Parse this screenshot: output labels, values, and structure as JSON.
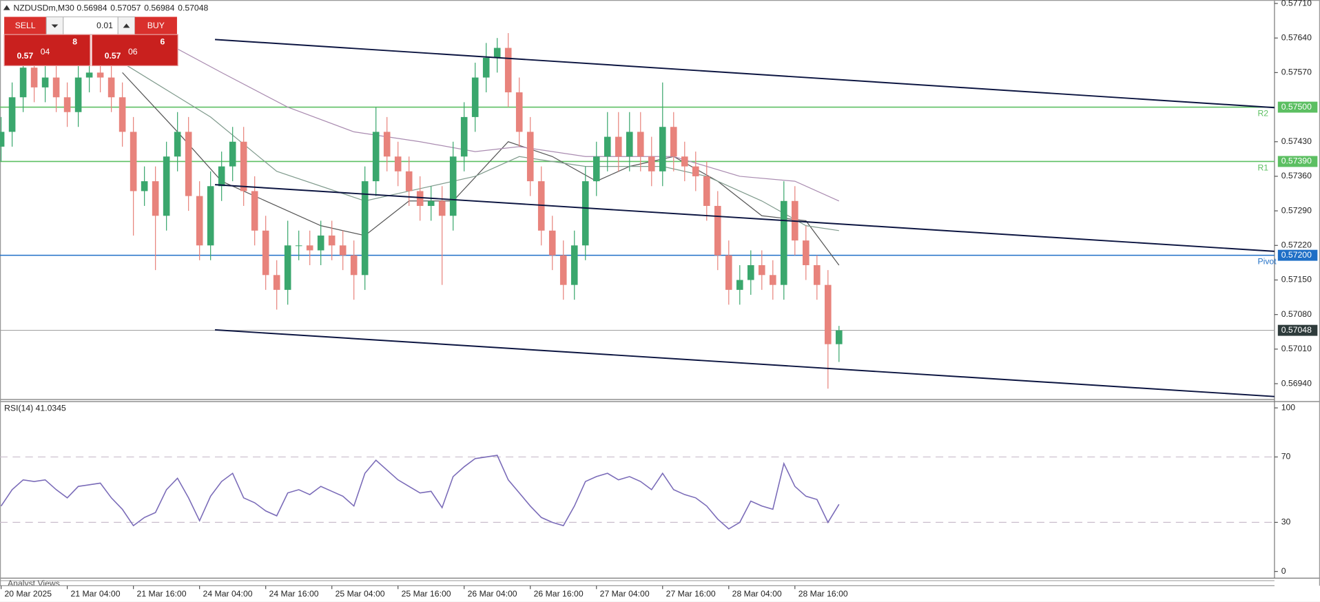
{
  "header": {
    "symbol": "NZDUSDm,M30",
    "ohlc": [
      "0.56984",
      "0.57057",
      "0.56984",
      "0.57048"
    ]
  },
  "trade_panel": {
    "sell": "SELL",
    "buy": "BUY",
    "lot": "0.01",
    "bid": {
      "big": "0.57",
      "pips": "04",
      "point": "8"
    },
    "ask": {
      "big": "0.57",
      "pips": "06",
      "point": "6"
    }
  },
  "footer_tab": "Analyst Views",
  "chart_data": [
    {
      "type": "candlestick",
      "xlim": [
        -0.1,
        115.5
      ],
      "ylim": [
        0.56908,
        0.57717
      ],
      "yticks": [
        {
          "value": 0.5771,
          "label": "0.57710"
        },
        {
          "value": 0.5764,
          "label": "0.57640"
        },
        {
          "value": 0.5757,
          "label": "0.57570"
        },
        {
          "value": 0.5743,
          "label": "0.57430"
        },
        {
          "value": 0.5736,
          "label": "0.57360"
        },
        {
          "value": 0.5729,
          "label": "0.57290"
        },
        {
          "value": 0.5722,
          "label": "0.57220"
        },
        {
          "value": 0.5715,
          "label": "0.57150"
        },
        {
          "value": 0.5708,
          "label": "0.57080"
        },
        {
          "value": 0.5701,
          "label": "0.57010"
        },
        {
          "value": 0.5694,
          "label": "0.56940"
        }
      ],
      "up_color": "#3aa76d",
      "down_color": "#e8837c",
      "open": [
        0.5742,
        0.5745,
        0.5752,
        0.5758,
        0.5754,
        0.5756,
        0.5752,
        0.5749,
        0.5756,
        0.5757,
        0.5756,
        0.5752,
        0.5745,
        0.5733,
        0.5735,
        0.5728,
        0.574,
        0.5745,
        0.5732,
        0.5722,
        0.5734,
        0.5738,
        0.5743,
        0.5733,
        0.5725,
        0.5716,
        0.5713,
        0.5722,
        0.5722,
        0.5721,
        0.5724,
        0.5722,
        0.572,
        0.5716,
        0.5735,
        0.5745,
        0.574,
        0.5737,
        0.5733,
        0.573,
        0.5731,
        0.5728,
        0.574,
        0.5748,
        0.5756,
        0.576,
        0.5762,
        0.5753,
        0.5745,
        0.5735,
        0.5725,
        0.572,
        0.5714,
        0.5722,
        0.5735,
        0.574,
        0.5744,
        0.574,
        0.5745,
        0.574,
        0.5737,
        0.5746,
        0.574,
        0.5738,
        0.5736,
        0.573,
        0.572,
        0.5713,
        0.5715,
        0.5718,
        0.5716,
        0.5714,
        0.5731,
        0.5723,
        0.5718,
        0.5714,
        0.5702
      ],
      "high": [
        0.5748,
        0.5755,
        0.5761,
        0.5761,
        0.5759,
        0.5759,
        0.5755,
        0.5759,
        0.576,
        0.576,
        0.5759,
        0.5755,
        0.5748,
        0.5738,
        0.5738,
        0.5743,
        0.5749,
        0.5748,
        0.5735,
        0.5737,
        0.5741,
        0.5746,
        0.5746,
        0.5736,
        0.5728,
        0.5719,
        0.5727,
        0.5725,
        0.5725,
        0.5727,
        0.5727,
        0.5725,
        0.5723,
        0.5738,
        0.575,
        0.5748,
        0.5743,
        0.574,
        0.5736,
        0.5734,
        0.5734,
        0.5743,
        0.5751,
        0.5759,
        0.5763,
        0.5764,
        0.5765,
        0.5756,
        0.5748,
        0.5738,
        0.5728,
        0.5723,
        0.5725,
        0.5738,
        0.5743,
        0.5749,
        0.5749,
        0.5749,
        0.5749,
        0.5744,
        0.5755,
        0.5749,
        0.5743,
        0.5741,
        0.5739,
        0.5733,
        0.5723,
        0.5718,
        0.5721,
        0.5721,
        0.5719,
        0.5735,
        0.5734,
        0.5726,
        0.572,
        0.5717,
        0.57057
      ],
      "low": [
        0.5739,
        0.5742,
        0.5749,
        0.5751,
        0.5751,
        0.5749,
        0.5746,
        0.5746,
        0.5753,
        0.5753,
        0.5749,
        0.5742,
        0.5724,
        0.573,
        0.5717,
        0.5725,
        0.5737,
        0.5729,
        0.5719,
        0.5719,
        0.5731,
        0.5735,
        0.573,
        0.5722,
        0.5713,
        0.5709,
        0.571,
        0.5719,
        0.5718,
        0.5718,
        0.5719,
        0.5717,
        0.5711,
        0.5713,
        0.5732,
        0.5737,
        0.5734,
        0.573,
        0.5727,
        0.5727,
        0.5714,
        0.5725,
        0.5737,
        0.5745,
        0.5753,
        0.5757,
        0.575,
        0.5742,
        0.5732,
        0.5722,
        0.5717,
        0.5711,
        0.5711,
        0.5719,
        0.5732,
        0.5737,
        0.5737,
        0.5737,
        0.5737,
        0.5734,
        0.5734,
        0.5737,
        0.5735,
        0.5733,
        0.5727,
        0.5717,
        0.571,
        0.571,
        0.5712,
        0.5713,
        0.5711,
        0.5711,
        0.572,
        0.5715,
        0.5711,
        0.5693,
        0.56984
      ],
      "close": [
        0.5745,
        0.5752,
        0.5758,
        0.5754,
        0.5756,
        0.5752,
        0.5749,
        0.5756,
        0.5757,
        0.5756,
        0.5752,
        0.5745,
        0.5733,
        0.5735,
        0.5728,
        0.574,
        0.5745,
        0.5732,
        0.5722,
        0.5734,
        0.5738,
        0.5743,
        0.5733,
        0.5725,
        0.5716,
        0.5713,
        0.5722,
        0.5722,
        0.5721,
        0.5724,
        0.5722,
        0.572,
        0.5716,
        0.5735,
        0.5745,
        0.574,
        0.5737,
        0.5733,
        0.573,
        0.5731,
        0.5728,
        0.574,
        0.5748,
        0.5756,
        0.576,
        0.5762,
        0.5753,
        0.5745,
        0.5735,
        0.5725,
        0.572,
        0.5714,
        0.5722,
        0.5735,
        0.574,
        0.5744,
        0.574,
        0.5745,
        0.574,
        0.5737,
        0.5746,
        0.574,
        0.5738,
        0.5736,
        0.573,
        0.572,
        0.5713,
        0.5715,
        0.5718,
        0.5716,
        0.5714,
        0.5731,
        0.5723,
        0.5718,
        0.5714,
        0.5702,
        0.57048
      ],
      "moving_averages": [
        {
          "color": "#555555",
          "x": [
            11,
            16,
            20,
            24,
            29,
            33,
            37,
            41,
            46,
            50,
            54,
            57,
            61,
            65,
            69,
            73,
            76
          ],
          "values": [
            0.5757,
            0.5745,
            0.5735,
            0.5731,
            0.5726,
            0.5724,
            0.5731,
            0.5731,
            0.5743,
            0.574,
            0.5735,
            0.5738,
            0.574,
            0.5735,
            0.5728,
            0.5727,
            0.5718
          ]
        },
        {
          "color": "#7f9a8c",
          "x": [
            11,
            19,
            25,
            33,
            37,
            43,
            47,
            53,
            60,
            64,
            69,
            73,
            76
          ],
          "values": [
            0.5759,
            0.5748,
            0.5737,
            0.5731,
            0.5733,
            0.5736,
            0.574,
            0.5738,
            0.5738,
            0.5736,
            0.5731,
            0.5726,
            0.5725
          ]
        },
        {
          "color": "#a98bb0",
          "x": [
            15,
            20,
            26,
            32,
            38,
            43,
            47,
            53,
            61,
            67,
            72,
            76
          ],
          "values": [
            0.5763,
            0.5757,
            0.575,
            0.5745,
            0.5743,
            0.5741,
            0.5742,
            0.574,
            0.574,
            0.5736,
            0.5735,
            0.5731
          ]
        }
      ],
      "trend_lines": [
        {
          "color": "#0b1440",
          "x": [
            19.4,
            115.5
          ],
          "values": [
            0.57637,
            0.57499
          ]
        },
        {
          "color": "#0b1440",
          "x": [
            19.4,
            115.5
          ],
          "values": [
            0.57343,
            0.57208
          ]
        },
        {
          "color": "#0b1440",
          "x": [
            19.4,
            115.5
          ],
          "values": [
            0.57049,
            0.56914
          ]
        }
      ],
      "hlines": [
        {
          "value": 0.575,
          "label": "0.57500",
          "tag": "R2",
          "color": "#5cbf62"
        },
        {
          "value": 0.5739,
          "label": "0.57390",
          "tag": "R1",
          "color": "#5cbf62"
        },
        {
          "value": 0.572,
          "label": "0.57200",
          "tag": "Pivot",
          "color": "#1f6fc6"
        }
      ],
      "current_price": {
        "value": 0.57048,
        "label": "0.57048",
        "color": "#2e3b3b"
      }
    },
    {
      "type": "line",
      "title": "RSI(14)",
      "color": "#7a6bb8",
      "xlim": [
        -0.1,
        115.5
      ],
      "ylim": [
        -4.1,
        103.6
      ],
      "yticks": [
        0,
        30,
        70,
        100
      ],
      "levels": [
        30,
        70
      ],
      "xticks": [
        {
          "value": 0,
          "label": "20 Mar 2025"
        },
        {
          "value": 6,
          "label": "21 Mar 04:00"
        },
        {
          "value": 12,
          "label": "21 Mar 16:00"
        },
        {
          "value": 18,
          "label": "24 Mar 04:00"
        },
        {
          "value": 24,
          "label": "24 Mar 16:00"
        },
        {
          "value": 30,
          "label": "25 Mar 04:00"
        },
        {
          "value": 36,
          "label": "25 Mar 16:00"
        },
        {
          "value": 42,
          "label": "26 Mar 04:00"
        },
        {
          "value": 48,
          "label": "26 Mar 16:00"
        },
        {
          "value": 54,
          "label": "27 Mar 04:00"
        },
        {
          "value": 60,
          "label": "27 Mar 16:00"
        },
        {
          "value": 66,
          "label": "28 Mar 04:00"
        },
        {
          "value": 72,
          "label": "28 Mar 16:00"
        }
      ],
      "values": [
        40,
        50,
        56,
        55,
        56,
        50,
        45,
        52,
        53,
        54,
        45,
        38,
        28,
        33,
        36,
        50,
        57,
        45,
        31,
        46,
        55,
        60,
        45,
        42,
        37,
        34,
        48,
        50,
        47,
        52,
        49,
        46,
        40,
        60,
        68,
        62,
        56,
        52,
        48,
        49,
        39,
        58,
        64,
        69,
        70,
        71,
        56,
        48,
        40,
        33,
        30,
        28,
        40,
        55,
        58,
        60,
        56,
        58,
        55,
        50,
        60,
        50,
        47,
        45,
        40,
        32,
        26,
        30,
        43,
        40,
        38,
        66,
        52,
        46,
        44,
        30,
        41.0345
      ]
    }
  ]
}
